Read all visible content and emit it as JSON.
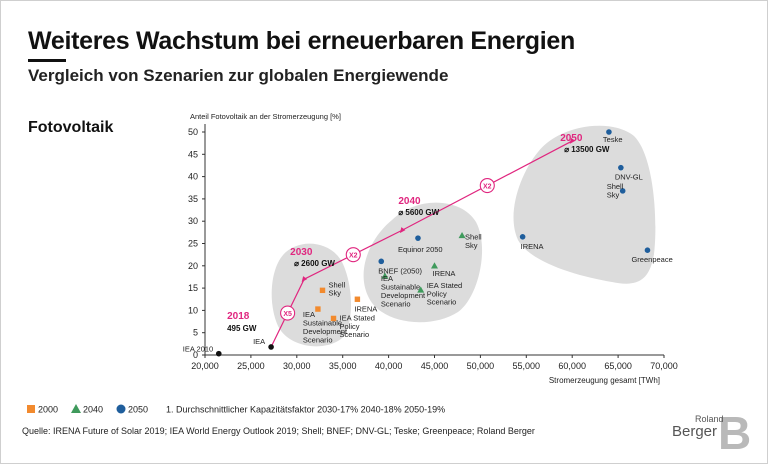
{
  "title": "Weiteres Wachstum bei erneuerbaren Energien",
  "subtitle": "Vergleich von Szenarien zur globalen Energiewende",
  "section_title": "Fotovoltaik",
  "source": "Quelle: IRENA Future of  Solar 2019; IEA World Energy Outlook 2019; Shell; BNEF; DNV-GL; Teske; Greenpeace; Roland Berger",
  "logo": {
    "top": "Roland",
    "main": "Berger",
    "mark": "B"
  },
  "colors": {
    "c2000": "#f28a2e",
    "c2040": "#3f9a5c",
    "c2050": "#1f5e9c",
    "accent": "#e0267f",
    "bubble": "#dcdcdc",
    "axis": "#333333"
  },
  "chart_data": {
    "type": "scatter",
    "title": "Fotovoltaik",
    "ylabel": "Anteil Fotovoltaik an der Stromerzeugung [%]",
    "xlabel": "Stromerzeugung gesamt [TWh]",
    "xlim": [
      20000,
      70000
    ],
    "ylim": [
      0,
      50
    ],
    "xticks": [
      20000,
      25000,
      30000,
      35000,
      40000,
      45000,
      50000,
      55000,
      60000,
      65000,
      70000
    ],
    "xtick_labels": [
      "20,000",
      "25,000",
      "30,000",
      "35,000",
      "40,000",
      "45,000",
      "50,000",
      "55,000",
      "60,000",
      "65,000",
      "70,000"
    ],
    "yticks": [
      0,
      5,
      10,
      15,
      20,
      25,
      30,
      35,
      40,
      45,
      50
    ],
    "ytick_labels": [
      "0",
      "5",
      "10",
      "15",
      "20",
      "25",
      "30",
      "35",
      "40",
      "45",
      "50"
    ],
    "series": [
      {
        "name": "2010",
        "marker": "circle",
        "color": "#111111",
        "points": [
          {
            "x": 21500,
            "y": 0.3,
            "label": "IEA 2010"
          }
        ]
      },
      {
        "name": "2018",
        "marker": "circle",
        "color": "#111111",
        "points": [
          {
            "x": 27200,
            "y": 1.8,
            "label": "IEA"
          }
        ]
      },
      {
        "name": "2000",
        "marker": "square",
        "color": "#f28a2e",
        "points": [
          {
            "x": 32800,
            "y": 14.5,
            "label": "Shell\nSky"
          },
          {
            "x": 32300,
            "y": 10.3,
            "label": "IEA\nSustainable\nDevelopment\nScenario"
          },
          {
            "x": 34000,
            "y": 8.2,
            "label": "IEA Stated\nPolicy\nScenario"
          },
          {
            "x": 36600,
            "y": 12.5,
            "label": "IRENA"
          }
        ]
      },
      {
        "name": "2040",
        "marker": "triangle",
        "color": "#3f9a5c",
        "points": [
          {
            "x": 39600,
            "y": 17.7,
            "label": "IEA\nSustainable\nDevelopment\nScenario"
          },
          {
            "x": 43500,
            "y": 14.6,
            "label": "IEA Stated\nPolicy\nScenario"
          },
          {
            "x": 45000,
            "y": 20.0,
            "label": "IRENA"
          },
          {
            "x": 48000,
            "y": 26.8,
            "label": "Shell\nSky"
          }
        ]
      },
      {
        "name": "2050",
        "marker": "circle",
        "color": "#1f5e9c",
        "points": [
          {
            "x": 39200,
            "y": 21.0,
            "label": "BNEF (2050)"
          },
          {
            "x": 43200,
            "y": 26.2,
            "label": "Equinor 2050"
          },
          {
            "x": 54600,
            "y": 26.5,
            "label": "IRENA"
          },
          {
            "x": 64000,
            "y": 50.0,
            "label": "Teske"
          },
          {
            "x": 65300,
            "y": 42.0,
            "label": "DNV-GL"
          },
          {
            "x": 65500,
            "y": 36.8,
            "label": "Shell\nSky"
          },
          {
            "x": 68200,
            "y": 23.5,
            "label": "Greenpeace"
          }
        ]
      }
    ],
    "trajectory": [
      {
        "x": 27200,
        "y": 1.8,
        "year": "2018",
        "value": "495 GW"
      },
      {
        "x": 30800,
        "y": 17.0,
        "year": "2030",
        "value": "⌀ 2600 GW"
      },
      {
        "x": 41500,
        "y": 28.0,
        "year": "2040",
        "value": "⌀ 5600 GW"
      },
      {
        "x": 60000,
        "y": 48.0,
        "year": "2050",
        "value": "⌀ 13500 GW"
      }
    ],
    "multipliers": [
      "X5",
      "X2",
      "X2"
    ],
    "legend": [
      {
        "label": "2000",
        "marker": "square",
        "color": "#f28a2e"
      },
      {
        "label": "2040",
        "marker": "triangle",
        "color": "#3f9a5c"
      },
      {
        "label": "2050",
        "marker": "circle",
        "color": "#1f5e9c"
      }
    ],
    "legend_note": "1. Durchschnittlicher Kapazitätsfaktor  2030-17%   2040-18%   2050-19%"
  }
}
